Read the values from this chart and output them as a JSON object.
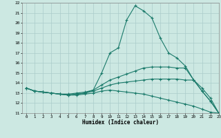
{
  "xlabel": "Humidex (Indice chaleur)",
  "x_values": [
    0,
    1,
    2,
    3,
    4,
    5,
    6,
    7,
    8,
    9,
    10,
    11,
    12,
    13,
    14,
    15,
    16,
    17,
    18,
    19,
    20,
    21,
    22,
    23
  ],
  "lines": [
    {
      "y": [
        13.5,
        13.2,
        13.1,
        13.0,
        12.9,
        12.8,
        12.8,
        12.9,
        13.0,
        13.2,
        13.3,
        13.2,
        13.1,
        13.0,
        12.9,
        12.7,
        12.5,
        12.3,
        12.1,
        11.9,
        11.7,
        11.4,
        11.1,
        11.0
      ]
    },
    {
      "y": [
        13.5,
        13.2,
        13.1,
        13.0,
        12.9,
        12.8,
        12.9,
        13.0,
        13.2,
        13.5,
        13.8,
        14.0,
        14.1,
        14.2,
        14.3,
        14.4,
        14.4,
        14.4,
        14.4,
        14.3,
        14.3,
        13.5,
        12.5,
        11.0
      ]
    },
    {
      "y": [
        13.5,
        13.2,
        13.1,
        13.0,
        12.9,
        12.9,
        13.0,
        13.1,
        13.3,
        13.8,
        14.3,
        14.6,
        14.9,
        15.2,
        15.5,
        15.6,
        15.6,
        15.6,
        15.5,
        15.5,
        14.3,
        13.2,
        12.2,
        11.0
      ]
    },
    {
      "y": [
        13.5,
        13.2,
        13.1,
        13.0,
        12.9,
        12.8,
        12.9,
        13.0,
        13.3,
        15.0,
        17.0,
        17.5,
        20.3,
        21.7,
        21.2,
        20.5,
        18.5,
        17.0,
        16.5,
        15.7,
        14.3,
        13.2,
        12.2,
        11.0
      ]
    }
  ],
  "ylim": [
    11,
    22
  ],
  "xlim": [
    -0.5,
    23
  ],
  "yticks": [
    11,
    12,
    13,
    14,
    15,
    16,
    17,
    18,
    19,
    20,
    21,
    22
  ],
  "xticks": [
    0,
    1,
    2,
    3,
    4,
    5,
    6,
    7,
    8,
    9,
    10,
    11,
    12,
    13,
    14,
    15,
    16,
    17,
    18,
    19,
    20,
    21,
    22,
    23
  ],
  "bg_color": "#cce8e2",
  "grid_color": "#aaccca",
  "line_color": "#1a7a6a",
  "marker": "+"
}
